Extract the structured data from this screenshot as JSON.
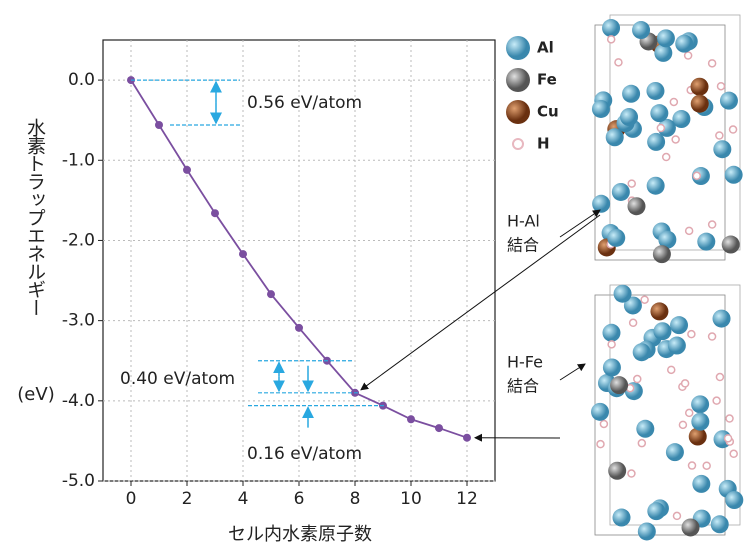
{
  "chart_data": {
    "type": "line",
    "y_label": "水素トラップエネルギー",
    "y_unit": "(eV)",
    "x_label": "セル内水素原子数",
    "x": [
      0,
      1,
      2,
      3,
      4,
      5,
      6,
      7,
      8,
      9,
      10,
      11,
      12
    ],
    "series": [
      {
        "name": "水素トラップエネルギー",
        "color": "#7b4fa0",
        "values": [
          0,
          -0.56,
          -1.12,
          -1.66,
          -2.17,
          -2.67,
          -3.09,
          -3.5,
          -3.9,
          -4.06,
          -4.23,
          -4.34,
          -4.46
        ]
      }
    ],
    "xlim": [
      -1,
      13
    ],
    "xticks": [
      0,
      2,
      4,
      6,
      8,
      10,
      12
    ],
    "ylim": [
      -5,
      0.5
    ],
    "yticks": [
      {
        "value": 0,
        "label": "0.0"
      },
      {
        "value": -1,
        "label": "-1.0"
      },
      {
        "value": -2,
        "label": "-2.0"
      },
      {
        "value": -3,
        "label": "-3.0"
      },
      {
        "value": -4,
        "label": "-4.0"
      },
      {
        "value": -5,
        "label": "-5.0"
      }
    ],
    "grid": true,
    "annotations": [
      "0.56 eV/atom",
      "0.40 eV/atom",
      "0.16 eV/atom"
    ]
  },
  "structure": {
    "legend": [
      {
        "label": "Al",
        "color": "#4a9cc0"
      },
      {
        "label": "Fe",
        "color": "#808080"
      },
      {
        "label": "Cu",
        "color": "#8a4a1a"
      },
      {
        "label": "H",
        "color": "#e8b8c0"
      }
    ],
    "bonds": [
      [
        "H-Al",
        "結合"
      ],
      [
        "H-Fe",
        "結合"
      ]
    ]
  }
}
